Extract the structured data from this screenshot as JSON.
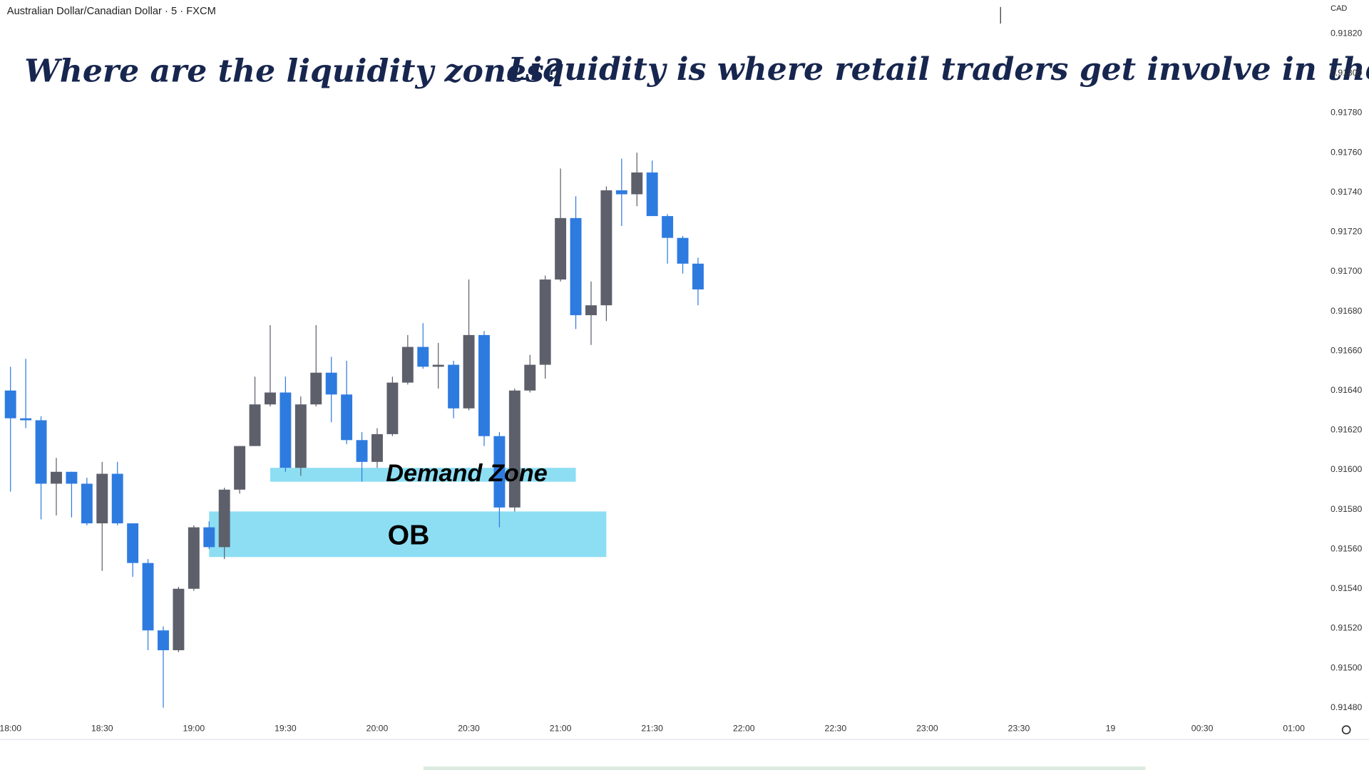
{
  "header": {
    "symbol": "Australian Dollar/Canadian Dollar · 5 · FXCM",
    "currency": "CAD"
  },
  "chart_data": {
    "type": "candlestick",
    "annotations": [
      "Where are the liquidity zones?",
      "Liquidity is where retail traders get involve in the market."
    ],
    "up_color": "#5d606b",
    "down_color": "#2e7be0",
    "open": [
      0.9164,
      0.91626,
      0.91625,
      0.91593,
      0.91599,
      0.91593,
      0.91573,
      0.91598,
      0.91573,
      0.91553,
      0.91519,
      0.91509,
      0.9154,
      0.91571,
      0.91561,
      0.9159,
      0.91612,
      0.91633,
      0.91639,
      0.91601,
      0.91633,
      0.91649,
      0.91638,
      0.91615,
      0.91604,
      0.91618,
      0.91644,
      0.91662,
      0.91652,
      0.91653,
      0.91631,
      0.91668,
      0.91617,
      0.91581,
      0.9164,
      0.91653,
      0.91696,
      0.91727,
      0.91678,
      0.91683,
      0.91741,
      0.91739,
      0.9175,
      0.91728,
      0.91717,
      0.91704
    ],
    "high": [
      0.91652,
      0.91656,
      0.91627,
      0.91606,
      0.91599,
      0.91596,
      0.91604,
      0.91604,
      0.91573,
      0.91555,
      0.91521,
      0.91541,
      0.91572,
      0.91574,
      0.91591,
      0.91612,
      0.91647,
      0.91673,
      0.91647,
      0.91637,
      0.91673,
      0.91657,
      0.91655,
      0.91619,
      0.91621,
      0.91647,
      0.91668,
      0.91674,
      0.91664,
      0.91655,
      0.91696,
      0.9167,
      0.91619,
      0.91641,
      0.91658,
      0.91698,
      0.91752,
      0.91738,
      0.91695,
      0.91743,
      0.91757,
      0.9176,
      0.91756,
      0.91729,
      0.91718,
      0.91707
    ],
    "low": [
      0.91589,
      0.91621,
      0.91575,
      0.91577,
      0.91576,
      0.91572,
      0.91549,
      0.91572,
      0.91546,
      0.91509,
      0.9148,
      0.91508,
      0.91539,
      0.9156,
      0.91555,
      0.91588,
      0.91612,
      0.91632,
      0.91599,
      0.91597,
      0.91632,
      0.91624,
      0.91613,
      0.91594,
      0.91601,
      0.91617,
      0.91643,
      0.91651,
      0.91641,
      0.91626,
      0.9163,
      0.91612,
      0.91571,
      0.91579,
      0.91639,
      0.91646,
      0.91695,
      0.91671,
      0.91663,
      0.91675,
      0.91723,
      0.91733,
      0.91728,
      0.91704,
      0.91699,
      0.91683
    ],
    "close": [
      0.91626,
      0.91625,
      0.91593,
      0.91599,
      0.91593,
      0.91573,
      0.91598,
      0.91573,
      0.91553,
      0.91519,
      0.91509,
      0.9154,
      0.91571,
      0.91561,
      0.9159,
      0.91612,
      0.91633,
      0.91639,
      0.91601,
      0.91633,
      0.91649,
      0.91638,
      0.91615,
      0.91604,
      0.91618,
      0.91644,
      0.91662,
      0.91652,
      0.91653,
      0.91631,
      0.91668,
      0.91617,
      0.91581,
      0.9164,
      0.91653,
      0.91696,
      0.91727,
      0.91678,
      0.91683,
      0.91741,
      0.91739,
      0.9175,
      0.91728,
      0.91717,
      0.91704,
      0.91691
    ],
    "xticks": [
      "18:00",
      "18:30",
      "19:00",
      "19:30",
      "20:00",
      "20:30",
      "21:00",
      "21:30",
      "22:00",
      "22:30",
      "23:00",
      "23:30",
      "19",
      "00:30",
      "01:00"
    ],
    "ylim": [
      0.91475,
      0.91837
    ],
    "yticks": [
      {
        "value": 0.9182,
        "label": "0.91820"
      },
      {
        "value": 0.918,
        "label": "0.91800"
      },
      {
        "value": 0.9178,
        "label": "0.91780"
      },
      {
        "value": 0.9176,
        "label": "0.91760"
      },
      {
        "value": 0.9174,
        "label": "0.91740"
      },
      {
        "value": 0.9172,
        "label": "0.91720"
      },
      {
        "value": 0.917,
        "label": "0.91700"
      },
      {
        "value": 0.9168,
        "label": "0.91680"
      },
      {
        "value": 0.9166,
        "label": "0.91660"
      },
      {
        "value": 0.9164,
        "label": "0.91640"
      },
      {
        "value": 0.9162,
        "label": "0.91620"
      },
      {
        "value": 0.916,
        "label": "0.91600"
      },
      {
        "value": 0.9158,
        "label": "0.91580"
      },
      {
        "value": 0.9156,
        "label": "0.91560"
      },
      {
        "value": 0.9154,
        "label": "0.91540"
      },
      {
        "value": 0.9152,
        "label": "0.91520"
      },
      {
        "value": 0.915,
        "label": "0.91500"
      },
      {
        "value": 0.9148,
        "label": "0.91480"
      }
    ],
    "zones": [
      {
        "label": "Demand Zone",
        "top": 0.91601,
        "bottom": 0.91594,
        "from": 17,
        "to": 37,
        "color": "#87dcf2"
      },
      {
        "label": "OB",
        "top": 0.91579,
        "bottom": 0.91556,
        "from": 13,
        "to": 39,
        "color": "#87dcf2"
      }
    ]
  }
}
